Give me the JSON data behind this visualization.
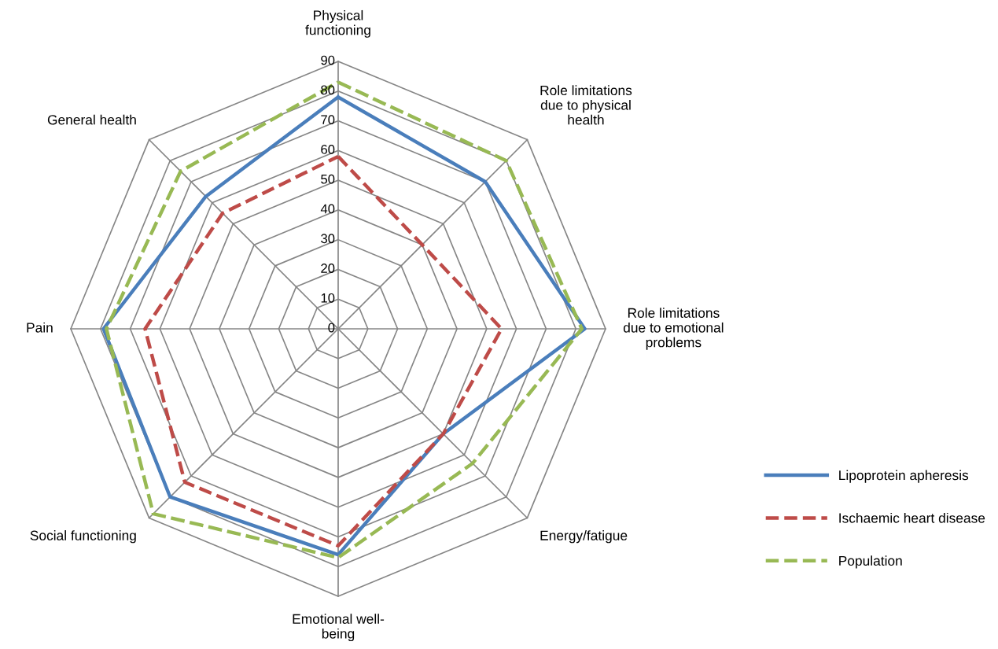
{
  "chart_data": {
    "type": "radar",
    "categories": [
      "Physical\nfunctioning",
      "Role limitations\ndue to physical\nhealth",
      "Role limitations\ndue to emotional\nproblems",
      "Energy/fatigue",
      "Emotional well-\nbeing",
      "Social functioning",
      "Pain",
      "General health"
    ],
    "series": [
      {
        "name": "Lipoprotein apheresis",
        "color": "#4a7ebb",
        "line_style": "solid",
        "values": [
          78,
          70,
          83,
          50,
          76,
          80,
          79,
          63
        ]
      },
      {
        "name": "Ischaemic heart disease",
        "color": "#be4b48",
        "line_style": "dashed",
        "values": [
          58,
          40,
          55,
          50,
          73,
          73,
          65,
          55
        ]
      },
      {
        "name": "Population",
        "color": "#98b954",
        "line_style": "dashed",
        "values": [
          83,
          80,
          82,
          64,
          77,
          88,
          78,
          75
        ]
      }
    ],
    "ylim": [
      0,
      90
    ],
    "yticks": [
      0,
      10,
      20,
      30,
      40,
      50,
      60,
      70,
      80,
      90
    ],
    "grid": true,
    "legend": "right"
  }
}
